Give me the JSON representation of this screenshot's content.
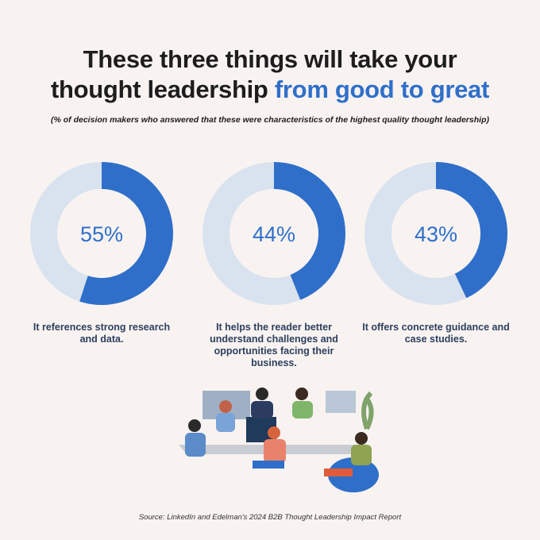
{
  "header": {
    "title": [
      "These three things will take your",
      "thought leadership"
    ],
    "highlight": "from good to great",
    "subtitle": "(% of decision makers who answered that these were characteristics of the highest quality thought leadership)"
  },
  "chart_data": [
    {
      "type": "donut",
      "values": [
        55
      ],
      "value_labels": [
        "55%"
      ],
      "ylim": [
        0,
        100
      ],
      "caption": "It references strong research and data.",
      "color": "#2f6fc9",
      "track_color": "#d9e3ef"
    },
    {
      "type": "donut",
      "values": [
        44
      ],
      "value_labels": [
        "44%"
      ],
      "ylim": [
        0,
        100
      ],
      "caption": "It helps the reader better understand challenges and opportunities facing their business.",
      "color": "#2f6fc9",
      "track_color": "#d9e3ef"
    },
    {
      "type": "donut",
      "values": [
        43
      ],
      "value_labels": [
        "43%"
      ],
      "ylim": [
        0,
        100
      ],
      "caption": "It offers concrete guidance and case studies.",
      "color": "#2f6fc9",
      "track_color": "#d9e3ef"
    }
  ],
  "footer": {
    "source": "Source: LinkedIn and Edelman's 2024 B2B Thought Leadership Impact Report"
  }
}
